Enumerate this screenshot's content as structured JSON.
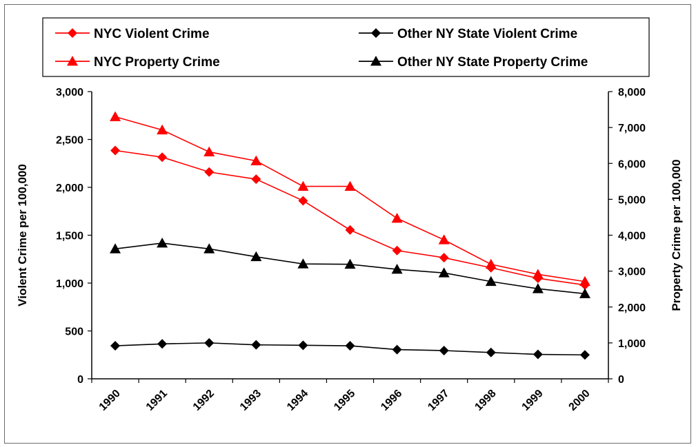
{
  "chart_data": {
    "type": "line",
    "categories": [
      "1990",
      "1991",
      "1992",
      "1993",
      "1994",
      "1995",
      "1996",
      "1997",
      "1998",
      "1999",
      "2000"
    ],
    "ylabel": "Violent Crime per 100,000",
    "y2label": "Property Crime per 100,000",
    "ylim": [
      0,
      3000
    ],
    "y2lim": [
      0,
      8000
    ],
    "yticks": [
      "0",
      "500",
      "1,000",
      "1,500",
      "2,000",
      "2,500",
      "3,000"
    ],
    "y2ticks": [
      "0",
      "1,000",
      "2,000",
      "3,000",
      "4,000",
      "5,000",
      "6,000",
      "7,000",
      "8,000"
    ],
    "grid": false,
    "legend_position": "top",
    "series": [
      {
        "name": "NYC Violent Crime",
        "axis": "left",
        "color": "#ff0000",
        "marker": "diamond",
        "values": [
          2385,
          2315,
          2160,
          2085,
          1860,
          1555,
          1340,
          1265,
          1160,
          1050,
          980
        ]
      },
      {
        "name": "Other NY State Violent Crime",
        "axis": "left",
        "color": "#000000",
        "marker": "diamond",
        "values": [
          345,
          365,
          375,
          355,
          350,
          345,
          305,
          295,
          275,
          255,
          250
        ]
      },
      {
        "name": "NYC Property Crime",
        "axis": "right",
        "color": "#ff0000",
        "marker": "triangle",
        "values": [
          7300,
          6930,
          6320,
          6070,
          5360,
          5360,
          4470,
          3870,
          3190,
          2910,
          2710
        ]
      },
      {
        "name": "Other NY State Property Crime",
        "axis": "right",
        "color": "#000000",
        "marker": "triangle",
        "values": [
          3620,
          3780,
          3620,
          3400,
          3200,
          3190,
          3050,
          2950,
          2710,
          2510,
          2370
        ]
      }
    ]
  }
}
